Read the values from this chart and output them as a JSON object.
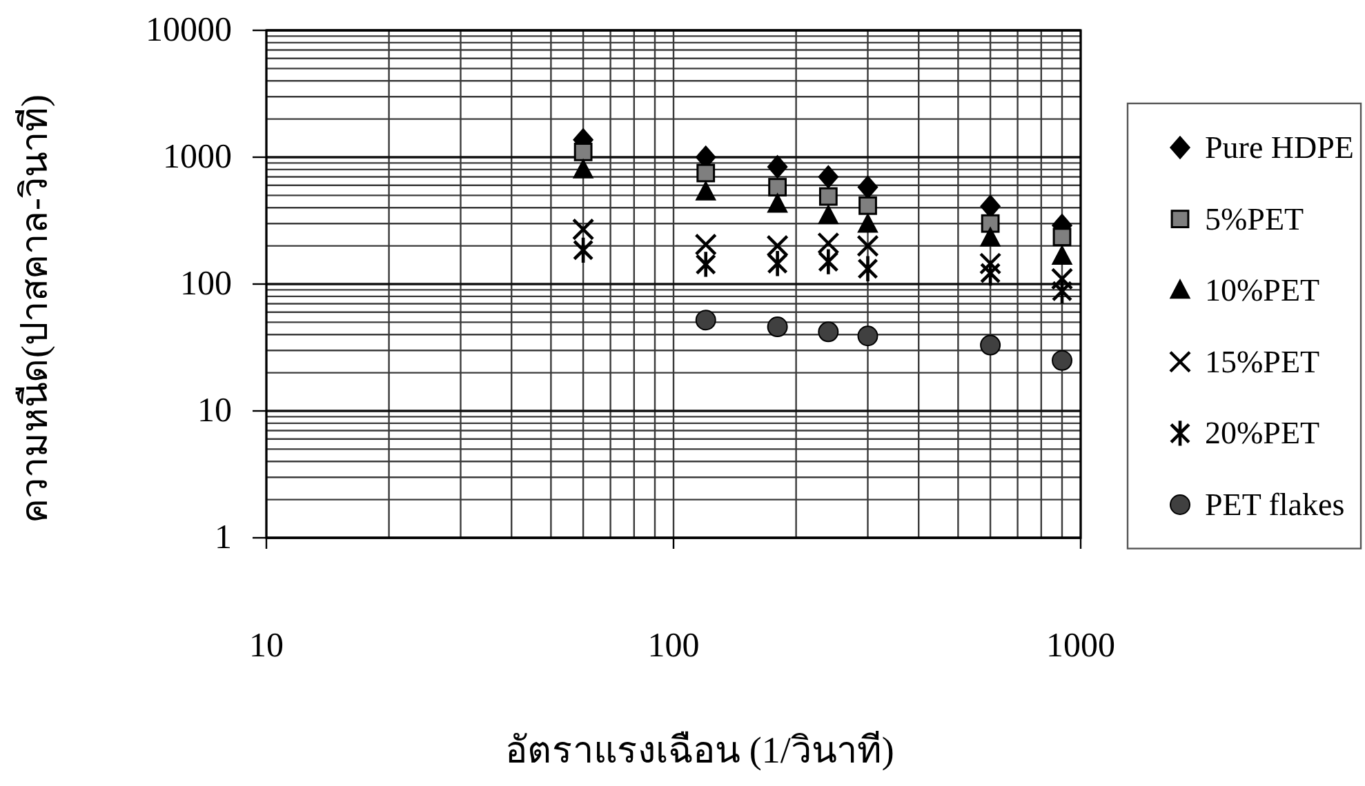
{
  "chart_data": {
    "type": "scatter",
    "xlabel": "อัตราแรงเฉือน (1/วินาที)",
    "ylabel": "ความหนืด(ปาสคาล-วินาที)",
    "x": [
      60,
      120,
      180,
      240,
      300,
      600,
      900
    ],
    "series": [
      {
        "name": "Pure HDPE",
        "color": "#000000",
        "marker": "diamond",
        "values": [
          1370,
          1000,
          840,
          700,
          580,
          410,
          290
        ]
      },
      {
        "name": "5%PET",
        "color": "#7f7f7f",
        "marker": "square",
        "values": [
          1100,
          750,
          580,
          490,
          415,
          300,
          235
        ]
      },
      {
        "name": "10%PET",
        "color": "#000000",
        "marker": "triangle",
        "values": [
          790,
          530,
          425,
          345,
          295,
          230,
          165
        ]
      },
      {
        "name": "15%PET",
        "color": "#000000",
        "marker": "cross",
        "values": [
          270,
          205,
          200,
          210,
          200,
          145,
          110
        ]
      },
      {
        "name": "20%PET",
        "color": "#000000",
        "marker": "star",
        "values": [
          185,
          143,
          145,
          150,
          132,
          122,
          88
        ]
      },
      {
        "name": "PET flakes",
        "color": "#404040",
        "marker": "circle",
        "values": [
          null,
          52,
          46,
          42,
          39,
          33,
          25
        ]
      }
    ],
    "xlim": [
      10,
      1000
    ],
    "ylim": [
      1,
      10000
    ],
    "xticks": [
      10,
      100,
      1000
    ],
    "yticks": [
      1,
      10,
      100,
      1000,
      10000
    ],
    "log": "xy",
    "grid": true,
    "legend": "right"
  }
}
